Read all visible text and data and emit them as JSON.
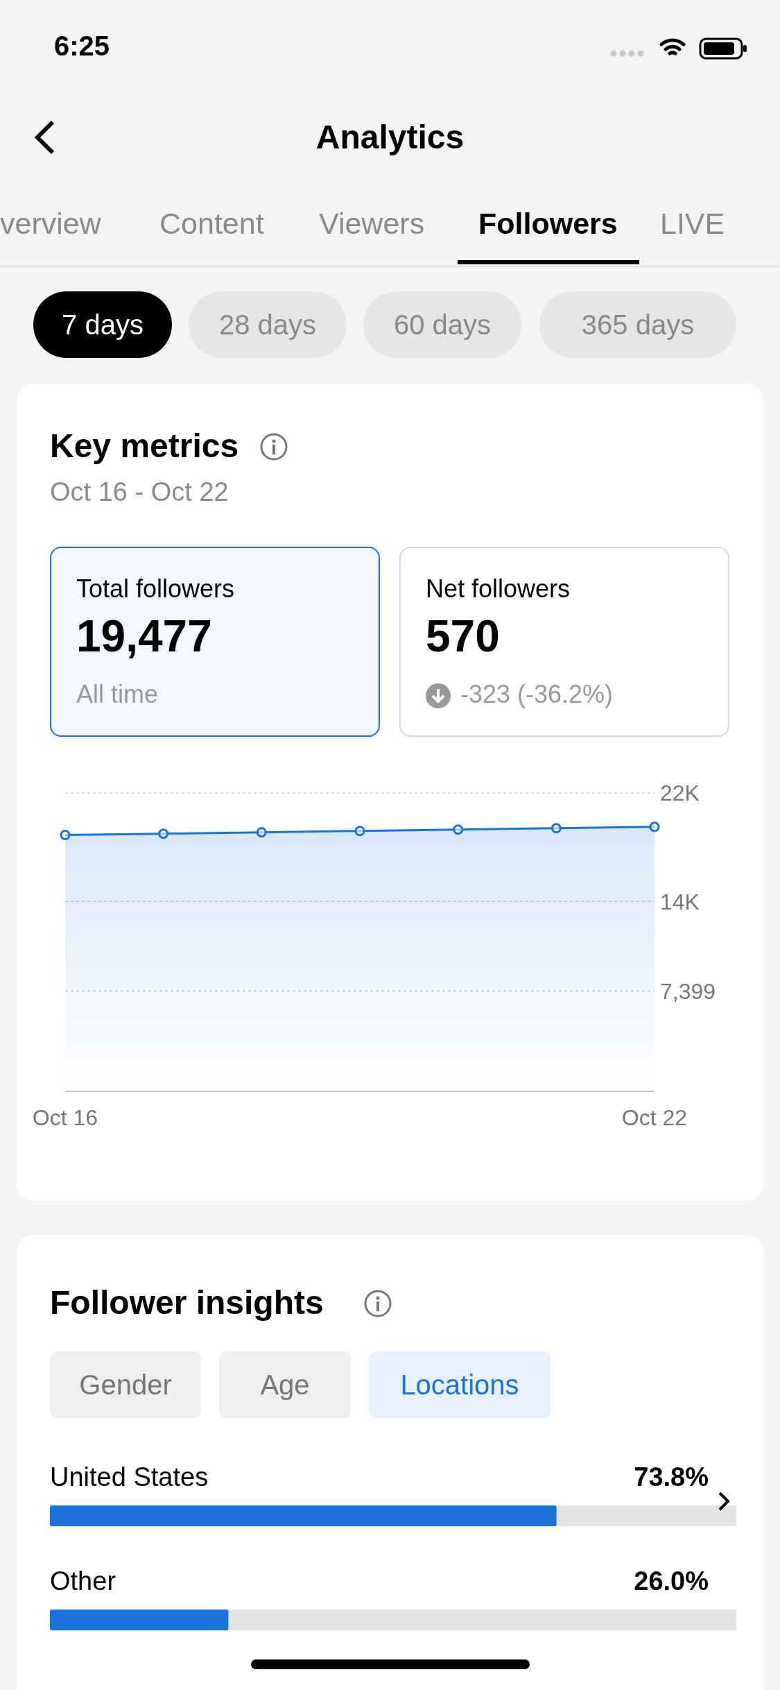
{
  "chart_data": [
    {
      "type": "other",
      "annotations": [
        "6:25",
        "Analytics",
        "verview",
        "Content",
        "Viewers",
        "Followers",
        "LIVE",
        "7 days",
        "28 days",
        "60 days",
        "365 days"
      ]
    },
    {
      "type": "area",
      "title": "Key metrics",
      "subtitle": "Oct 16 - Oct 22",
      "annotations": [
        "Total followers",
        "19,477",
        "All time",
        "Net followers",
        "570",
        "-323 (-36.2%)"
      ],
      "categories": [
        "Oct 16",
        null,
        null,
        null,
        null,
        null,
        "Oct 22"
      ],
      "series": [
        {
          "color": "#1a73d9",
          "values": [
            18900,
            19000,
            19100,
            19200,
            19300,
            19400,
            19500
          ]
        }
      ],
      "ylim": [
        0,
        22000
      ],
      "yticks": [
        {
          "value": 7399,
          "label": "7,399"
        },
        {
          "value": 14000,
          "label": "14K"
        },
        {
          "value": 22000,
          "label": "22K"
        }
      ],
      "grid": "y",
      "marker": "circle"
    },
    {
      "type": "bar",
      "orientation": "horizontal",
      "title": "Follower insights",
      "annotations": [
        "Gender",
        "Age",
        "Locations"
      ],
      "categories": [
        "United States",
        "Other"
      ],
      "values": [
        73.8,
        26.0
      ],
      "value_labels": [
        "73.8%",
        "26.0%"
      ],
      "color": "#1a73d9",
      "xlim": [
        0,
        100
      ],
      "tick_labels": false
    }
  ]
}
